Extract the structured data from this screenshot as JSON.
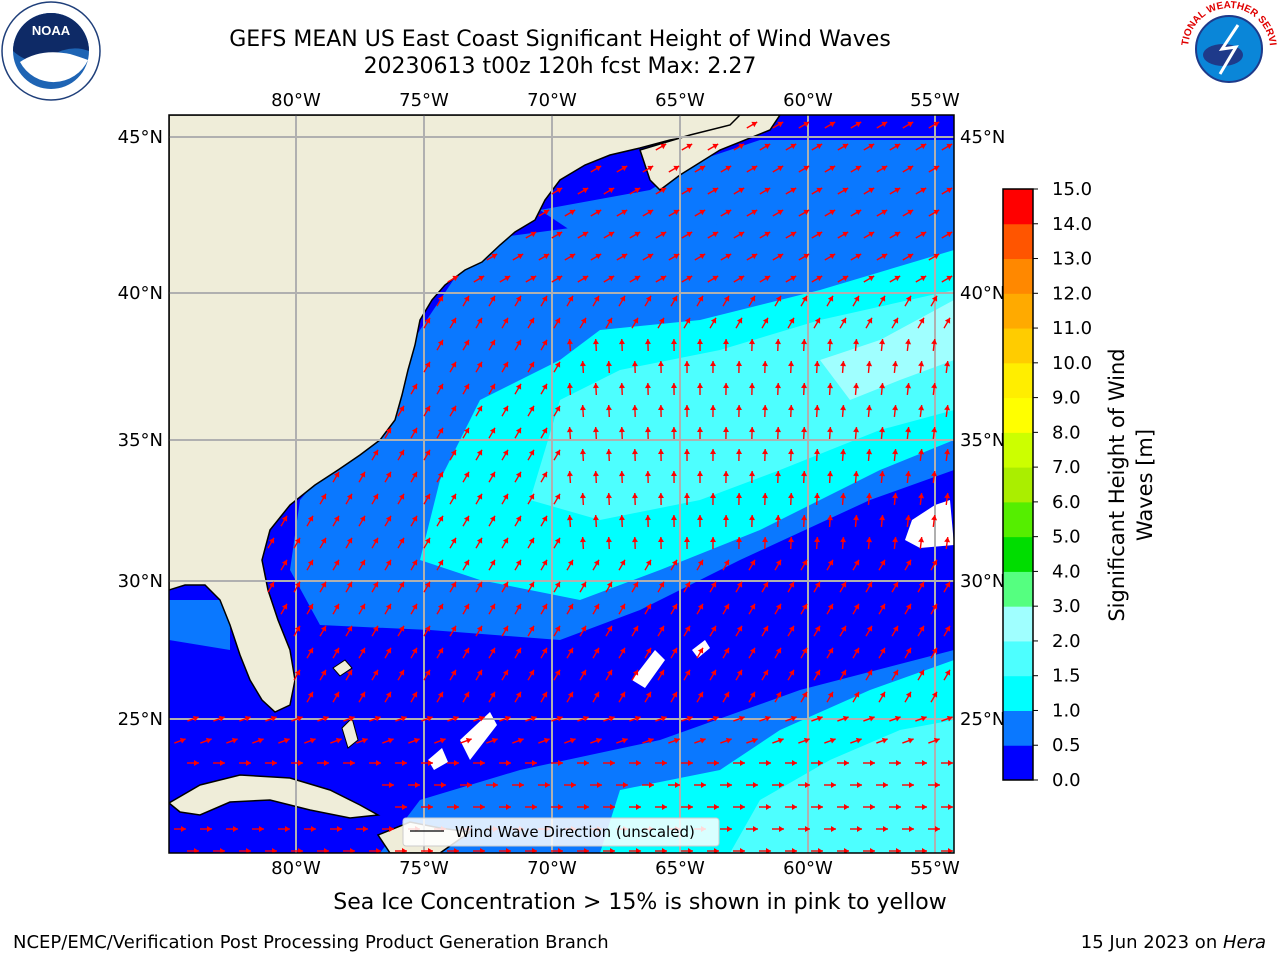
{
  "title_line1": "GEFS MEAN US East Coast Significant Height of Wind Waves",
  "title_line2": "20230613 t00z 120h fcst   Max: 2.27",
  "logos": {
    "left": "noaa-logo",
    "left_text": "NOAA",
    "right": "nws-logo",
    "right_text": "NATIONAL WEATHER SERVICE"
  },
  "map": {
    "lon_labels": [
      "80°W",
      "75°W",
      "70°W",
      "65°W",
      "60°W",
      "55°W"
    ],
    "lat_labels": [
      "45°N",
      "40°N",
      "35°N",
      "30°N",
      "25°N"
    ],
    "legend_label": "Wind Wave Direction (unscaled)",
    "arrow_color": "#ff0000",
    "land_color": "#efedd9"
  },
  "colorbar": {
    "label": "Significant Height of Wind Waves [m]",
    "ticks": [
      "0.0",
      "0.5",
      "1.0",
      "1.5",
      "2.0",
      "3.0",
      "4.0",
      "5.0",
      "6.0",
      "7.0",
      "8.0",
      "9.0",
      "10.0",
      "11.0",
      "12.0",
      "13.0",
      "14.0",
      "15.0"
    ],
    "colors": [
      "#0000ff",
      "#0a78ff",
      "#00ffff",
      "#4dffff",
      "#a0ffff",
      "#55ff80",
      "#00dd00",
      "#55ee00",
      "#aaee00",
      "#ccff00",
      "#ffff00",
      "#ffee00",
      "#ffcc00",
      "#ffaa00",
      "#ff8800",
      "#ff5500",
      "#ff0000"
    ]
  },
  "footer": {
    "ice_note": "Sea Ice Concentration > 15% is shown in pink to yellow",
    "credit": "NCEP/EMC/Verification Post Processing Product Generation Branch",
    "date": "15 Jun 2023 on ",
    "host": "Hera"
  }
}
